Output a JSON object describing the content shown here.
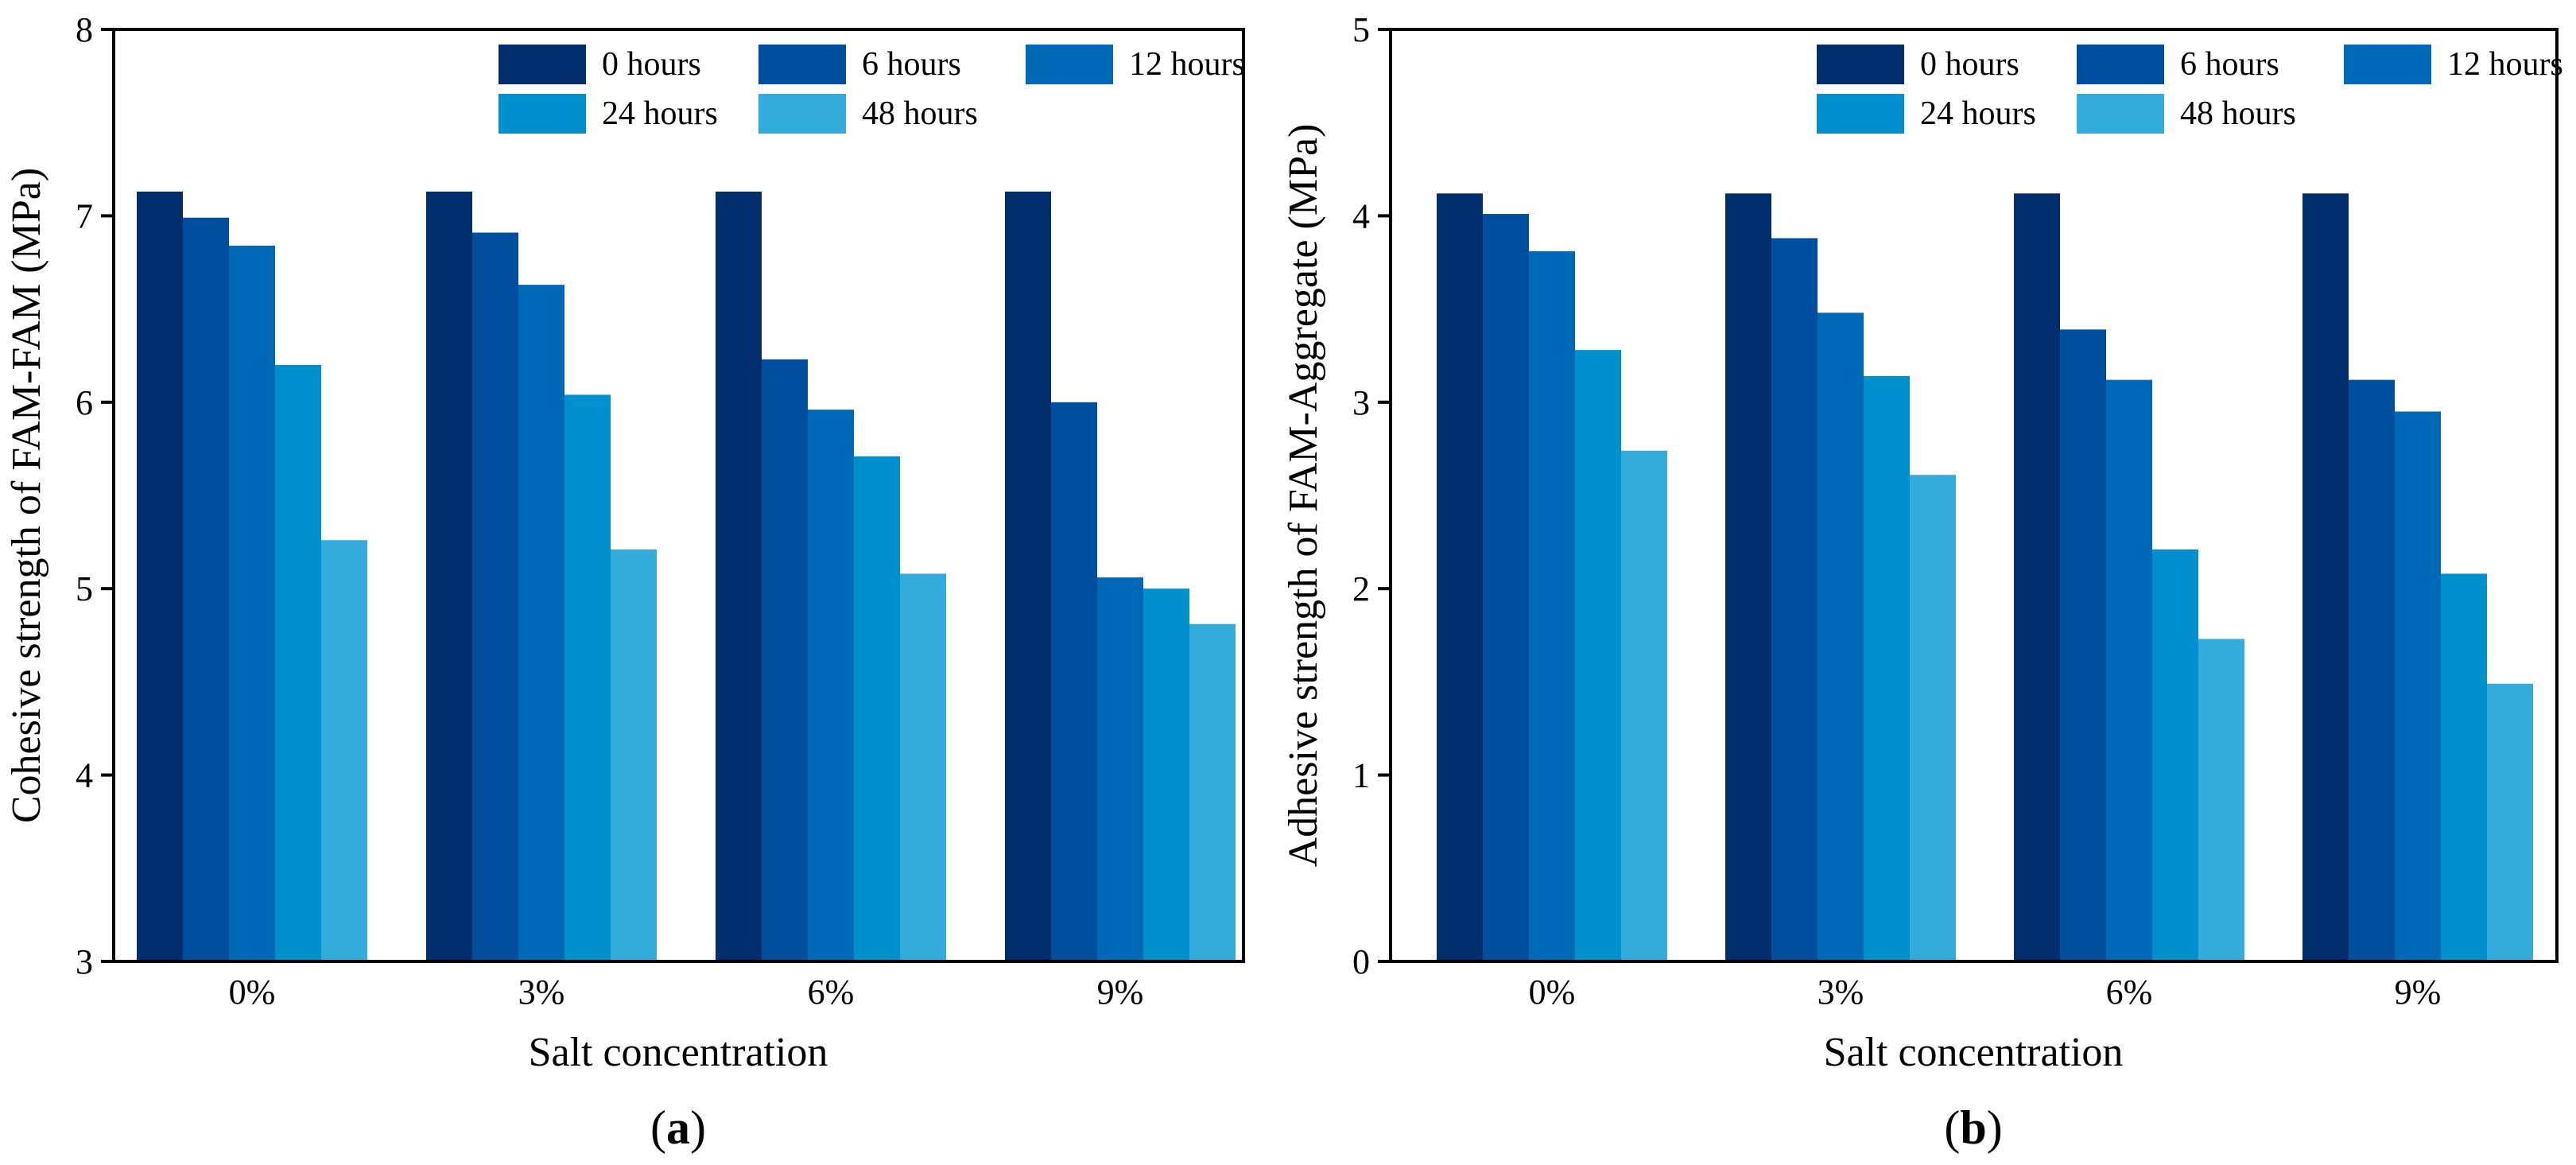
{
  "charts": [
    {
      "panel_label": {
        "open": "(",
        "letter": "a",
        "close": ")"
      }
    },
    {
      "panel_label": {
        "open": "(",
        "letter": "b",
        "close": ")"
      }
    }
  ],
  "chart_data": [
    {
      "type": "bar",
      "title": "",
      "xlabel": "Salt concentration",
      "ylabel": "Cohesive strength of FAM-FAM (MPa)",
      "categories": [
        "0%",
        "3%",
        "6%",
        "9%"
      ],
      "ylim": [
        3,
        8
      ],
      "yticks": [
        3,
        4,
        5,
        6,
        7,
        8
      ],
      "legend_position": "top-right",
      "series": [
        {
          "name": "0 hours",
          "color": "#002D6B",
          "values": [
            7.13,
            7.13,
            7.13,
            7.13
          ]
        },
        {
          "name": "6 hours",
          "color": "#004E9E",
          "values": [
            6.99,
            6.91,
            6.23,
            6.0
          ]
        },
        {
          "name": "12 hours",
          "color": "#0069B7",
          "values": [
            6.84,
            6.63,
            5.96,
            5.06
          ]
        },
        {
          "name": "24 hours",
          "color": "#0090CE",
          "values": [
            6.2,
            6.04,
            5.71,
            5.0
          ]
        },
        {
          "name": "48 hours",
          "color": "#33ABDB",
          "values": [
            5.26,
            5.21,
            5.08,
            4.81
          ]
        }
      ]
    },
    {
      "type": "bar",
      "title": "",
      "xlabel": "Salt concentration",
      "ylabel": "Adhesive strength of FAM-Aggregate (MPa)",
      "categories": [
        "0%",
        "3%",
        "6%",
        "9%"
      ],
      "ylim": [
        0,
        5
      ],
      "yticks": [
        0,
        1,
        2,
        3,
        4,
        5
      ],
      "legend_position": "top-right",
      "series": [
        {
          "name": "0 hours",
          "color": "#002D6B",
          "values": [
            4.12,
            4.12,
            4.12,
            4.12
          ]
        },
        {
          "name": "6 hours",
          "color": "#004E9E",
          "values": [
            4.01,
            3.88,
            3.39,
            3.12
          ]
        },
        {
          "name": "12 hours",
          "color": "#0069B7",
          "values": [
            3.81,
            3.48,
            3.12,
            2.95
          ]
        },
        {
          "name": "24 hours",
          "color": "#0090CE",
          "values": [
            3.28,
            3.14,
            2.21,
            2.08
          ]
        },
        {
          "name": "48 hours",
          "color": "#33ABDB",
          "values": [
            2.74,
            2.61,
            1.73,
            1.49
          ]
        }
      ]
    }
  ]
}
